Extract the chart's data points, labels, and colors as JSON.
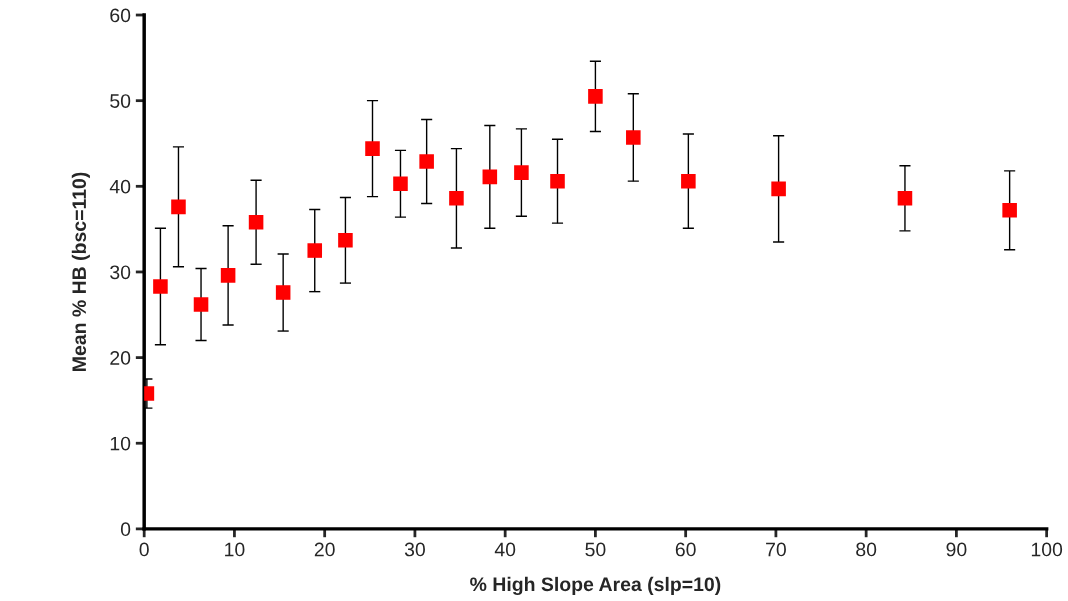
{
  "chart_data": {
    "type": "scatter",
    "xlabel": "% High Slope Area (slp=10)",
    "ylabel": "Mean % HB (bsc=110)",
    "x": [
      0.3,
      1.8,
      3.8,
      6.3,
      9.3,
      12.4,
      15.4,
      18.9,
      22.3,
      25.3,
      28.4,
      31.3,
      34.6,
      38.3,
      41.8,
      45.8,
      50.0,
      54.2,
      60.3,
      70.3,
      84.3,
      95.9
    ],
    "series": [
      {
        "color": "#ff0000",
        "values": [
          15.8,
          28.3,
          37.6,
          26.2,
          29.6,
          35.8,
          27.6,
          32.5,
          33.7,
          44.4,
          40.3,
          42.9,
          38.6,
          41.1,
          41.6,
          40.6,
          50.5,
          45.7,
          40.6,
          39.7,
          38.6,
          37.2
        ],
        "errors": [
          1.7,
          6.8,
          7.0,
          4.2,
          5.8,
          4.9,
          4.5,
          4.8,
          5.0,
          5.6,
          3.9,
          4.9,
          5.8,
          6.0,
          5.1,
          4.9,
          4.1,
          5.1,
          5.5,
          6.2,
          3.8,
          4.6
        ]
      }
    ],
    "xlim": [
      0,
      100
    ],
    "xticks": [
      0,
      10,
      20,
      30,
      40,
      50,
      60,
      70,
      80,
      90,
      100
    ],
    "ylim": [
      0,
      60
    ],
    "yticks": [
      0,
      10,
      20,
      30,
      40,
      50,
      60
    ],
    "marker": "square",
    "grid": false
  }
}
